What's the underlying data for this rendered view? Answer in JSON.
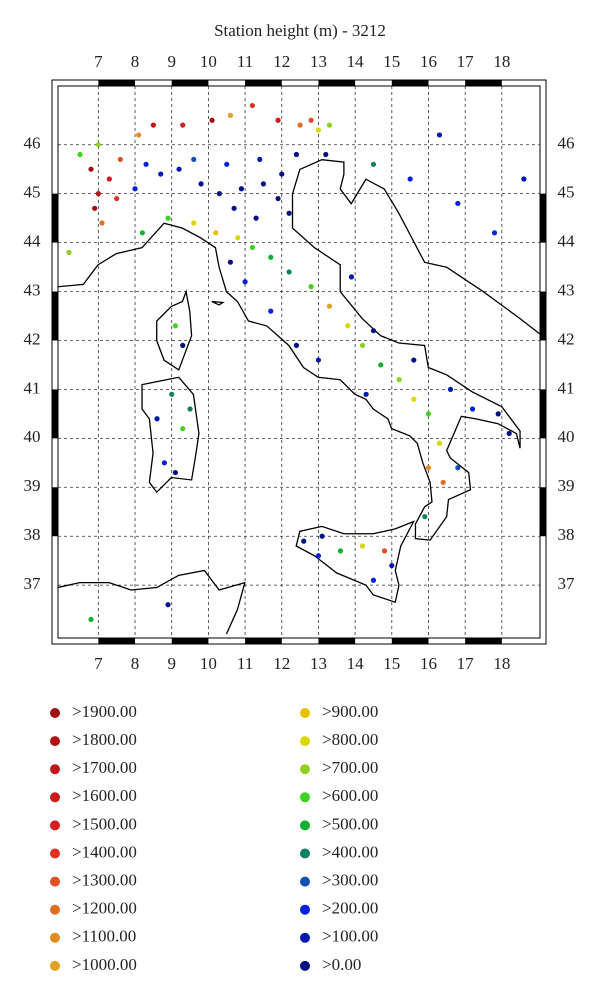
{
  "chart_data": {
    "type": "map",
    "title": "Station height (m) - 3212",
    "xlim": [
      5.9,
      19.04
    ],
    "ylim": [
      35.92,
      47.2
    ],
    "xticks": [
      7,
      8,
      9,
      10,
      11,
      12,
      13,
      14,
      15,
      16,
      17,
      18
    ],
    "yticks": [
      37,
      38,
      39,
      40,
      41,
      42,
      43,
      44,
      45,
      46
    ],
    "grid": true,
    "legend": [
      {
        "value": 1900,
        "label": ">1900.00",
        "color": "#a01010"
      },
      {
        "value": 1800,
        "label": ">1800.00",
        "color": "#b01414"
      },
      {
        "value": 1700,
        "label": ">1700.00",
        "color": "#c01818"
      },
      {
        "value": 1600,
        "label": ">1600.00",
        "color": "#cc1a1a"
      },
      {
        "value": 1500,
        "label": ">1500.00",
        "color": "#d81e1e"
      },
      {
        "value": 1400,
        "label": ">1400.00",
        "color": "#e03020"
      },
      {
        "value": 1300,
        "label": ">1300.00",
        "color": "#e05020"
      },
      {
        "value": 1200,
        "label": ">1200.00",
        "color": "#e07020"
      },
      {
        "value": 1100,
        "label": ">1100.00",
        "color": "#e08a20"
      },
      {
        "value": 1000,
        "label": ">1000.00",
        "color": "#e0a020"
      },
      {
        "value": 900,
        "label": ">900.00",
        "color": "#e8c000"
      },
      {
        "value": 800,
        "label": ">800.00",
        "color": "#d8d800"
      },
      {
        "value": 700,
        "label": ">700.00",
        "color": "#90d020"
      },
      {
        "value": 600,
        "label": ">600.00",
        "color": "#40d020"
      },
      {
        "value": 500,
        "label": ">500.00",
        "color": "#10b030"
      },
      {
        "value": 400,
        "label": ">400.00",
        "color": "#108060"
      },
      {
        "value": 300,
        "label": ">300.00",
        "color": "#1050b0"
      },
      {
        "value": 200,
        "label": ">200.00",
        "color": "#0020e0"
      },
      {
        "value": 100,
        "label": ">100.00",
        "color": "#0018b0"
      },
      {
        "value": 0,
        "label": ">0.00",
        "color": "#001080"
      }
    ],
    "stations": [
      [
        6.8,
        45.5,
        2200
      ],
      [
        7.0,
        45.0,
        1900
      ],
      [
        7.3,
        45.3,
        1700
      ],
      [
        7.5,
        44.9,
        1500
      ],
      [
        7.1,
        44.4,
        1300
      ],
      [
        6.9,
        44.7,
        2100
      ],
      [
        7.6,
        45.7,
        1400
      ],
      [
        8.1,
        46.2,
        1200
      ],
      [
        8.5,
        46.4,
        1800
      ],
      [
        9.3,
        46.4,
        1600
      ],
      [
        10.1,
        46.5,
        2000
      ],
      [
        10.6,
        46.6,
        1100
      ],
      [
        11.2,
        46.8,
        1500
      ],
      [
        11.9,
        46.5,
        1700
      ],
      [
        12.5,
        46.4,
        1300
      ],
      [
        13.0,
        46.3,
        900
      ],
      [
        12.8,
        46.5,
        1400
      ],
      [
        13.3,
        46.4,
        750
      ],
      [
        7.0,
        46.0,
        800
      ],
      [
        6.5,
        45.8,
        650
      ],
      [
        8.0,
        45.1,
        250
      ],
      [
        8.7,
        45.4,
        150
      ],
      [
        9.2,
        45.5,
        120
      ],
      [
        9.8,
        45.2,
        60
      ],
      [
        10.3,
        45.0,
        40
      ],
      [
        10.9,
        45.1,
        30
      ],
      [
        11.5,
        45.2,
        20
      ],
      [
        12.0,
        45.4,
        10
      ],
      [
        11.9,
        44.9,
        5
      ],
      [
        12.2,
        44.6,
        3
      ],
      [
        11.3,
        44.5,
        50
      ],
      [
        10.7,
        44.7,
        80
      ],
      [
        9.6,
        45.7,
        350
      ],
      [
        10.5,
        45.6,
        220
      ],
      [
        11.4,
        45.7,
        180
      ],
      [
        12.4,
        45.8,
        90
      ],
      [
        8.3,
        45.6,
        280
      ],
      [
        13.2,
        45.8,
        30
      ],
      [
        8.2,
        44.2,
        600
      ],
      [
        8.9,
        44.5,
        700
      ],
      [
        9.6,
        44.4,
        850
      ],
      [
        10.2,
        44.2,
        1000
      ],
      [
        10.8,
        44.1,
        900
      ],
      [
        11.2,
        43.9,
        650
      ],
      [
        11.7,
        43.7,
        550
      ],
      [
        12.2,
        43.4,
        500
      ],
      [
        12.8,
        43.1,
        700
      ],
      [
        13.3,
        42.7,
        1100
      ],
      [
        13.8,
        42.3,
        900
      ],
      [
        14.2,
        41.9,
        800
      ],
      [
        14.7,
        41.5,
        600
      ],
      [
        15.2,
        41.2,
        750
      ],
      [
        15.6,
        40.8,
        850
      ],
      [
        16.0,
        40.5,
        700
      ],
      [
        16.3,
        39.9,
        900
      ],
      [
        16.0,
        39.4,
        1200
      ],
      [
        16.4,
        39.1,
        1300
      ],
      [
        10.6,
        43.6,
        40
      ],
      [
        11.0,
        43.2,
        250
      ],
      [
        11.7,
        42.6,
        300
      ],
      [
        12.4,
        41.9,
        60
      ],
      [
        13.0,
        41.6,
        200
      ],
      [
        14.3,
        40.9,
        150
      ],
      [
        13.9,
        43.3,
        120
      ],
      [
        14.5,
        42.2,
        80
      ],
      [
        15.6,
        41.6,
        90
      ],
      [
        16.6,
        41.0,
        180
      ],
      [
        17.2,
        40.6,
        250
      ],
      [
        17.9,
        40.5,
        60
      ],
      [
        18.2,
        40.1,
        90
      ],
      [
        16.8,
        39.4,
        400
      ],
      [
        15.9,
        38.4,
        450
      ],
      [
        13.1,
        38.0,
        100
      ],
      [
        13.6,
        37.7,
        600
      ],
      [
        14.2,
        37.8,
        900
      ],
      [
        14.8,
        37.7,
        1400
      ],
      [
        15.0,
        37.4,
        200
      ],
      [
        14.5,
        37.1,
        300
      ],
      [
        13.0,
        37.6,
        250
      ],
      [
        12.6,
        37.9,
        50
      ],
      [
        9.0,
        40.9,
        500
      ],
      [
        9.3,
        40.2,
        700
      ],
      [
        8.8,
        39.5,
        250
      ],
      [
        9.1,
        39.3,
        30
      ],
      [
        8.6,
        40.4,
        150
      ],
      [
        9.5,
        40.6,
        420
      ],
      [
        9.1,
        42.3,
        650
      ],
      [
        9.3,
        41.9,
        100
      ],
      [
        14.5,
        45.6,
        500
      ],
      [
        15.5,
        45.3,
        300
      ],
      [
        16.8,
        44.8,
        250
      ],
      [
        17.8,
        44.2,
        300
      ],
      [
        18.6,
        45.3,
        120
      ],
      [
        16.3,
        46.2,
        200
      ],
      [
        6.2,
        43.8,
        800
      ],
      [
        6.8,
        36.3,
        600
      ],
      [
        8.9,
        36.6,
        100
      ]
    ]
  }
}
